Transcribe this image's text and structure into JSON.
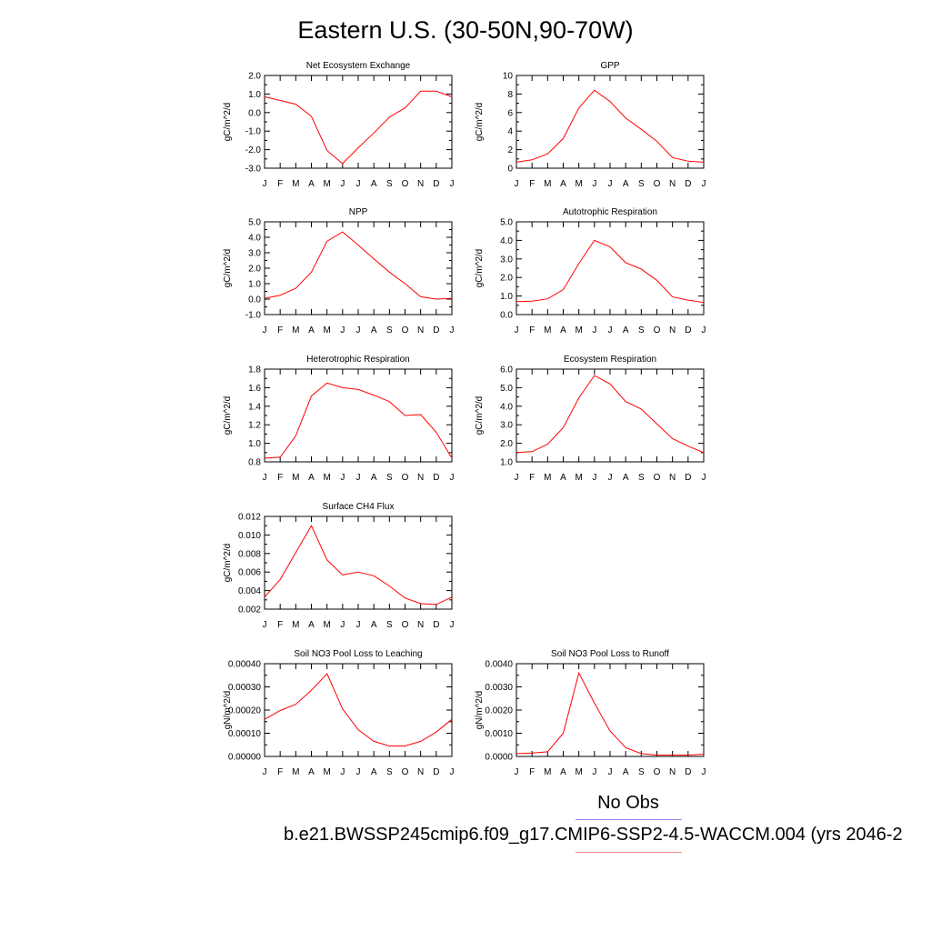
{
  "title": "Eastern U.S. (30-50N,90-70W)",
  "legend": {
    "label": "No Obs",
    "obs_color": "#8a8af0",
    "model_color": "#f08a8a"
  },
  "case_label": "b.e21.BWSSP245cmip6.f09_g17.CMIP6-SSP2-4.5-WACCM.004 (yrs 2046-2",
  "series_color": "#ff0000",
  "chart_data": [
    {
      "type": "line",
      "title": "Net Ecosystem Exchange",
      "ylabel": "gC/m^2/d",
      "categories": [
        "J",
        "F",
        "M",
        "A",
        "M",
        "J",
        "J",
        "A",
        "S",
        "O",
        "N",
        "D",
        "J"
      ],
      "ylim": [
        -3.0,
        2.0
      ],
      "yticks": [
        "-3.0",
        "-2.0",
        "-1.0",
        "0.0",
        "1.0",
        "2.0"
      ],
      "values": [
        0.85,
        0.65,
        0.45,
        -0.2,
        -2.05,
        -2.75,
        -1.9,
        -1.1,
        -0.25,
        0.25,
        1.15,
        1.15,
        0.85
      ]
    },
    {
      "type": "line",
      "title": "GPP",
      "ylabel": "gC/m^2/d",
      "categories": [
        "J",
        "F",
        "M",
        "A",
        "M",
        "J",
        "J",
        "A",
        "S",
        "O",
        "N",
        "D",
        "J"
      ],
      "ylim": [
        0,
        10
      ],
      "yticks": [
        "0",
        "2",
        "4",
        "6",
        "8",
        "10"
      ],
      "values": [
        0.65,
        0.9,
        1.55,
        3.2,
        6.5,
        8.4,
        7.2,
        5.4,
        4.2,
        2.9,
        1.15,
        0.75,
        0.65
      ]
    },
    {
      "type": "line",
      "title": "NPP",
      "ylabel": "gC/m^2/d",
      "categories": [
        "J",
        "F",
        "M",
        "A",
        "M",
        "J",
        "J",
        "A",
        "S",
        "O",
        "N",
        "D",
        "J"
      ],
      "ylim": [
        -1.0,
        5.0
      ],
      "yticks": [
        "-1.0",
        "0.0",
        "1.0",
        "2.0",
        "3.0",
        "4.0",
        "5.0"
      ],
      "values": [
        0.05,
        0.25,
        0.7,
        1.75,
        3.75,
        4.35,
        3.5,
        2.6,
        1.75,
        1.0,
        0.15,
        0.0,
        0.05
      ]
    },
    {
      "type": "line",
      "title": "Autotrophic Respiration",
      "ylabel": "gC/m^2/d",
      "categories": [
        "J",
        "F",
        "M",
        "A",
        "M",
        "J",
        "J",
        "A",
        "S",
        "O",
        "N",
        "D",
        "J"
      ],
      "ylim": [
        0,
        5.0
      ],
      "yticks": [
        "0.0",
        "1.0",
        "2.0",
        "3.0",
        "4.0",
        "5.0"
      ],
      "values": [
        0.7,
        0.72,
        0.85,
        1.35,
        2.75,
        4.0,
        3.65,
        2.8,
        2.45,
        1.85,
        0.95,
        0.78,
        0.65
      ]
    },
    {
      "type": "line",
      "title": "Heterotrophic Respiration",
      "ylabel": "gC/m^2/d",
      "categories": [
        "J",
        "F",
        "M",
        "A",
        "M",
        "J",
        "J",
        "A",
        "S",
        "O",
        "N",
        "D",
        "J"
      ],
      "ylim": [
        0.8,
        1.8
      ],
      "yticks": [
        "0.8",
        "1.0",
        "1.2",
        "1.4",
        "1.6",
        "1.8"
      ],
      "values": [
        0.84,
        0.85,
        1.08,
        1.51,
        1.65,
        1.6,
        1.58,
        1.52,
        1.45,
        1.3,
        1.31,
        1.12,
        0.84
      ]
    },
    {
      "type": "line",
      "title": "Ecosystem Respiration",
      "ylabel": "gC/m^2/d",
      "categories": [
        "J",
        "F",
        "M",
        "A",
        "M",
        "J",
        "J",
        "A",
        "S",
        "O",
        "N",
        "D",
        "J"
      ],
      "ylim": [
        1.0,
        6.0
      ],
      "yticks": [
        "1.0",
        "2.0",
        "3.0",
        "4.0",
        "5.0",
        "6.0"
      ],
      "values": [
        1.5,
        1.55,
        1.95,
        2.85,
        4.45,
        5.65,
        5.2,
        4.25,
        3.85,
        3.05,
        2.25,
        1.85,
        1.5
      ]
    },
    {
      "type": "line",
      "title": "Surface CH4 Flux",
      "ylabel": "gC/m^2/d",
      "categories": [
        "J",
        "F",
        "M",
        "A",
        "M",
        "J",
        "J",
        "A",
        "S",
        "O",
        "N",
        "D",
        "J"
      ],
      "ylim": [
        0.002,
        0.012
      ],
      "yticks": [
        "0.002",
        "0.004",
        "0.006",
        "0.008",
        "0.010",
        "0.012"
      ],
      "values": [
        0.0033,
        0.0052,
        0.0081,
        0.011,
        0.0073,
        0.0057,
        0.006,
        0.0056,
        0.0045,
        0.0032,
        0.0026,
        0.0025,
        0.0033
      ]
    },
    {
      "type": "line",
      "title": "Soil NO3 Pool Loss to Leaching",
      "ylabel": "gN/m^2/d",
      "categories": [
        "J",
        "F",
        "M",
        "A",
        "M",
        "J",
        "J",
        "A",
        "S",
        "O",
        "N",
        "D",
        "J"
      ],
      "ylim": [
        0,
        0.0004
      ],
      "yticks": [
        "0.00000",
        "0.00010",
        "0.00020",
        "0.00030",
        "0.00040"
      ],
      "values": [
        0.00016,
        0.000198,
        0.000225,
        0.000285,
        0.000357,
        0.000205,
        0.000115,
        6.5e-05,
        4.5e-05,
        4.5e-05,
        6.5e-05,
        0.000105,
        0.00016
      ]
    },
    {
      "type": "line",
      "title": "Soil NO3 Pool Loss to Runoff",
      "ylabel": "gN/m^2/d",
      "categories": [
        "J",
        "F",
        "M",
        "A",
        "M",
        "J",
        "J",
        "A",
        "S",
        "O",
        "N",
        "D",
        "J"
      ],
      "ylim": [
        0,
        0.004
      ],
      "yticks": [
        "0.0000",
        "0.0010",
        "0.0020",
        "0.0030",
        "0.0040"
      ],
      "values": [
        0.00012,
        0.00015,
        0.0002,
        0.001,
        0.0036,
        0.0023,
        0.0011,
        0.00038,
        0.00012,
        6e-05,
        6e-05,
        6e-05,
        0.0001
      ]
    }
  ]
}
